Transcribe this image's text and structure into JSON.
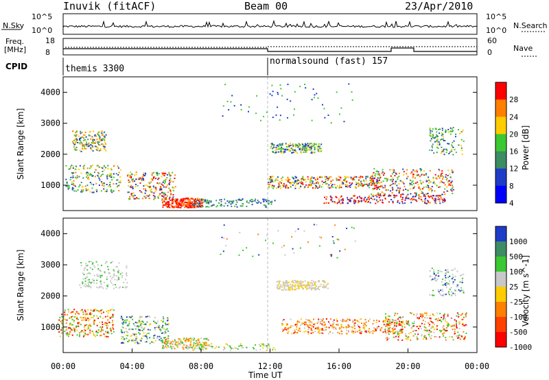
{
  "header": {
    "station": "Inuvik (fitACF)",
    "beam": "Beam 00",
    "date": "23/Apr/2010"
  },
  "noise_panel": {
    "left_label": "N.Sky",
    "left_ticks": [
      "10^5",
      "10^0"
    ],
    "right_label": "N.Search",
    "right_ticks": [
      "10^5",
      "10^0"
    ]
  },
  "freq_panel": {
    "left_label_1": "Freq.",
    "left_label_2": "[MHz]",
    "left_ticks": [
      "18",
      "8"
    ],
    "right_label": "Nave",
    "right_ticks": [
      "60",
      "0"
    ]
  },
  "cpid_panel": {
    "label": "CPID",
    "programs": [
      "themis 3300",
      "normalsound (fast) 157"
    ]
  },
  "colors": {
    "red": "#ff0000",
    "orange": "#ff7f00",
    "yellow": "#ffcc00",
    "green": "#3cc832",
    "teal": "#3c8c64",
    "blue": "#1e3cc8",
    "gray": "#c8c8c8"
  },
  "chart_data": [
    {
      "type": "heatmap",
      "title": "Power",
      "ylabel": "Slant Range [km]",
      "xlabel": "",
      "ylim": [
        180,
        4500
      ],
      "yticks": [
        1000,
        2000,
        3000,
        4000
      ],
      "colorbar": {
        "label": "Power [dB]",
        "ticks": [
          "28",
          "24",
          "20",
          "16",
          "12",
          "8",
          "4"
        ],
        "colors": [
          "#ff0000",
          "#ff7f00",
          "#ffcc00",
          "#3cc832",
          "#3c8c64",
          "#1e3cc8",
          "#0000ff"
        ]
      },
      "description_scale": "time-range backscatter power"
    },
    {
      "type": "heatmap",
      "title": "Velocity",
      "ylabel": "Slant Range [km]",
      "xlabel": "Time UT",
      "ylim": [
        180,
        4500
      ],
      "yticks": [
        1000,
        2000,
        3000,
        4000
      ],
      "xticks": [
        "00:00",
        "04:00",
        "08:00",
        "12:00",
        "16:00",
        "20:00",
        "00:00"
      ],
      "colorbar": {
        "label": "Velocity [m s^-1]",
        "ticks": [
          "1000",
          "500",
          "100",
          "25",
          "-25",
          "-100",
          "-500",
          "-1000"
        ],
        "colors": [
          "#1e3cc8",
          "#3c8c64",
          "#3cc832",
          "#c8c8c8",
          "#ffcc00",
          "#ff7f00",
          "#ff4000",
          "#ff0000"
        ]
      }
    }
  ]
}
